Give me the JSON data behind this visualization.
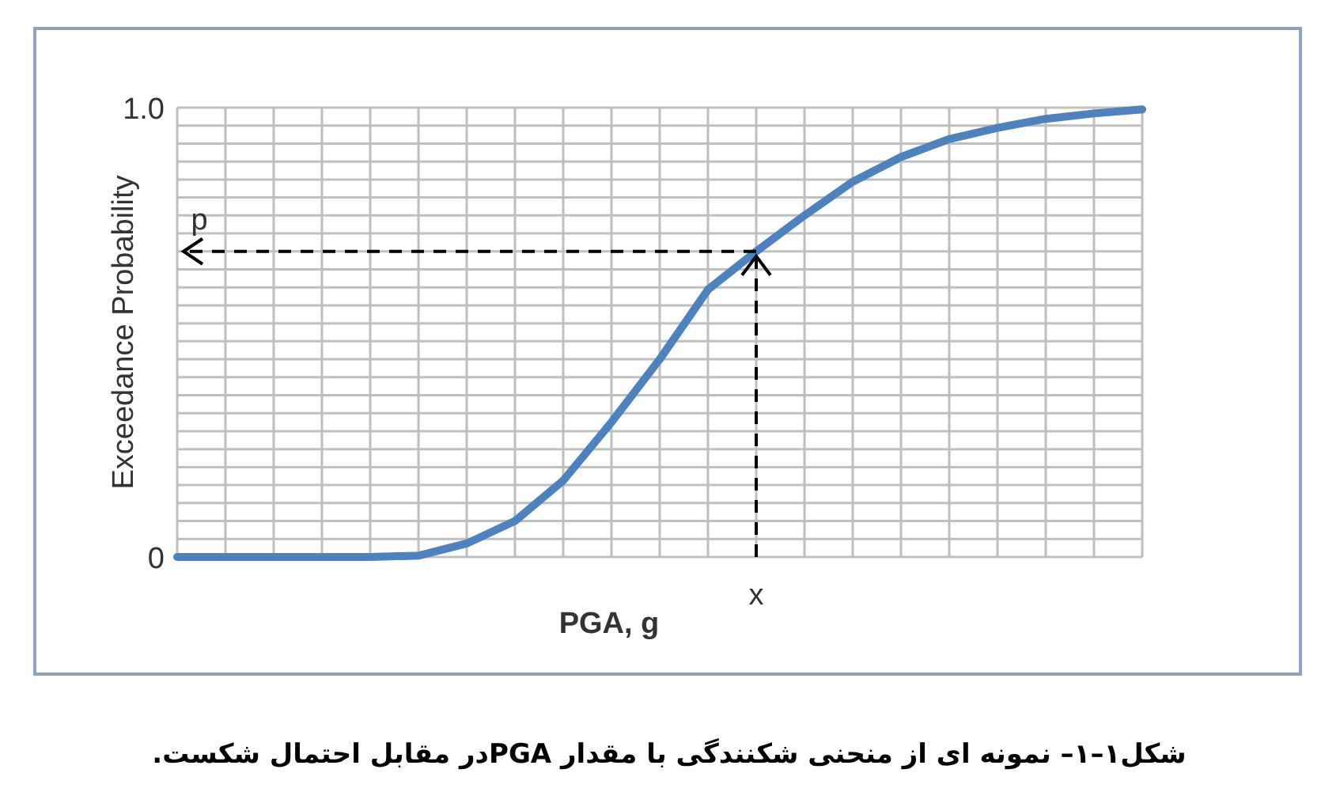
{
  "chart_data": {
    "type": "line",
    "xlabel": "PGA, g",
    "ylabel": "Exceedance Probability",
    "categories": [
      null,
      null,
      null,
      null,
      null,
      null,
      null,
      null,
      null,
      null,
      null,
      null,
      null,
      null,
      null,
      null,
      null,
      null,
      null,
      null,
      null
    ],
    "series": [
      {
        "color": "#4f81bd",
        "values": [
          0,
          0,
          0,
          0,
          0,
          0.003,
          0.03,
          0.08,
          0.17,
          0.3,
          0.44,
          0.595,
          0.68,
          0.76,
          0.835,
          0.89,
          0.93,
          0.955,
          0.975,
          0.987,
          0.996
        ]
      }
    ],
    "ylim": [
      0,
      1
    ],
    "yticks": [
      0,
      {
        "value": 0.04,
        "label": null
      },
      {
        "value": 0.08,
        "label": null
      },
      {
        "value": 0.12,
        "label": null
      },
      {
        "value": 0.16,
        "label": null
      },
      {
        "value": 0.2,
        "label": null
      },
      {
        "value": 0.24,
        "label": null
      },
      {
        "value": 0.28,
        "label": null
      },
      {
        "value": 0.32,
        "label": null
      },
      {
        "value": 0.36,
        "label": null
      },
      {
        "value": 0.4,
        "label": null
      },
      {
        "value": 0.44,
        "label": null
      },
      {
        "value": 0.48,
        "label": null
      },
      {
        "value": 0.52,
        "label": null
      },
      {
        "value": 0.56,
        "label": null
      },
      {
        "value": 0.6,
        "label": null
      },
      {
        "value": 0.64,
        "label": null
      },
      {
        "value": 0.68,
        "label": null
      },
      {
        "value": 0.72,
        "label": null
      },
      {
        "value": 0.76,
        "label": null
      },
      {
        "value": 0.8,
        "label": null
      },
      {
        "value": 0.84,
        "label": null
      },
      {
        "value": 0.88,
        "label": null
      },
      {
        "value": 0.92,
        "label": null
      },
      {
        "value": 0.96,
        "label": null
      },
      {
        "value": 1,
        "label": "1.0"
      }
    ],
    "grid": true,
    "ref_lines": [
      {
        "axis": "y",
        "value": 0.68,
        "label": "p",
        "color": "#000000",
        "line_style": "dashed"
      }
    ],
    "annotations": [
      "x",
      "شکل۱–۱– نمونه ای از منحنی شکنندگی با مقدار PGAدر مقابل احتمال شکست."
    ]
  }
}
